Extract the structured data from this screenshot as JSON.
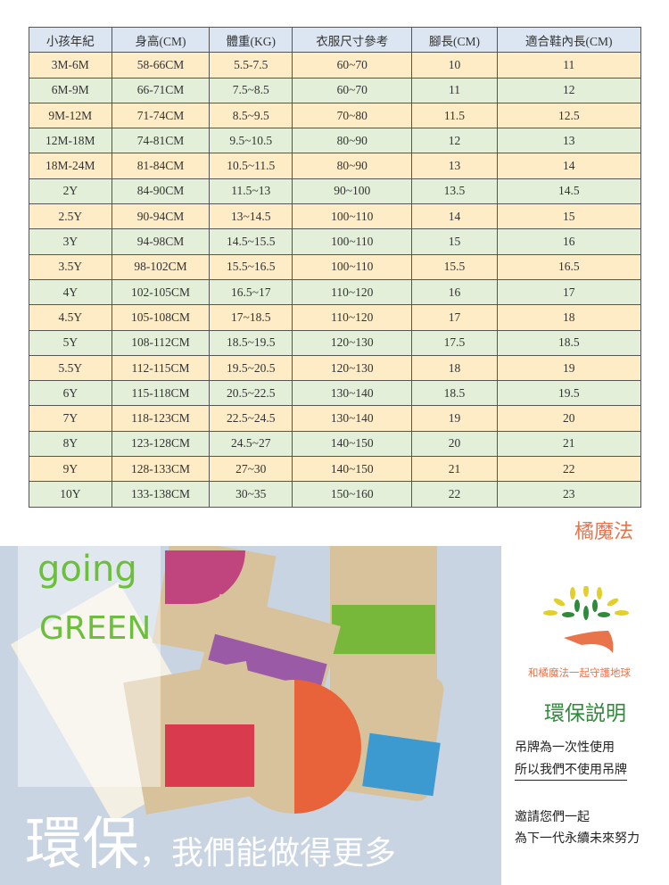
{
  "table": {
    "headers": [
      "小孩年紀",
      "身高(CM)",
      "體重(KG)",
      "衣服尺寸參考",
      "腳長(CM)",
      "適合鞋內長(CM)"
    ],
    "rows": [
      [
        "3M-6M",
        "58-66CM",
        "5.5-7.5",
        "60~70",
        "10",
        "11"
      ],
      [
        "6M-9M",
        "66-71CM",
        "7.5~8.5",
        "60~70",
        "11",
        "12"
      ],
      [
        "9M-12M",
        "71-74CM",
        "8.5~9.5",
        "70~80",
        "11.5",
        "12.5"
      ],
      [
        "12M-18M",
        "74-81CM",
        "9.5~10.5",
        "80~90",
        "12",
        "13"
      ],
      [
        "18M-24M",
        "81-84CM",
        "10.5~11.5",
        "80~90",
        "13",
        "14"
      ],
      [
        "2Y",
        "84-90CM",
        "11.5~13",
        "90~100",
        "13.5",
        "14.5"
      ],
      [
        "2.5Y",
        "90-94CM",
        "13~14.5",
        "100~110",
        "14",
        "15"
      ],
      [
        "3Y",
        "94-98CM",
        "14.5~15.5",
        "100~110",
        "15",
        "16"
      ],
      [
        "3.5Y",
        "98-102CM",
        "15.5~16.5",
        "100~110",
        "15.5",
        "16.5"
      ],
      [
        "4Y",
        "102-105CM",
        "16.5~17",
        "110~120",
        "16",
        "17"
      ],
      [
        "4.5Y",
        "105-108CM",
        "17~18.5",
        "110~120",
        "17",
        "18"
      ],
      [
        "5Y",
        "108-112CM",
        "18.5~19.5",
        "120~130",
        "17.5",
        "18.5"
      ],
      [
        "5.5Y",
        "112-115CM",
        "19.5~20.5",
        "120~130",
        "18",
        "19"
      ],
      [
        "6Y",
        "115-118CM",
        "20.5~22.5",
        "130~140",
        "18.5",
        "19.5"
      ],
      [
        "7Y",
        "118-123CM",
        "22.5~24.5",
        "130~140",
        "19",
        "20"
      ],
      [
        "8Y",
        "123-128CM",
        "24.5~27",
        "140~150",
        "20",
        "21"
      ],
      [
        "9Y",
        "128-133CM",
        "27~30",
        "140~150",
        "21",
        "22"
      ],
      [
        "10Y",
        "133-138CM",
        "30~35",
        "150~160",
        "22",
        "23"
      ]
    ]
  },
  "brand": "橘魔法",
  "banner": {
    "going": "going",
    "green": "GREEN",
    "big": "環保",
    "sub": "，我們能做得更多"
  },
  "panel": {
    "logo_text": "和橘魔法一起守護地球",
    "title": "環保説明",
    "line1": "吊牌為一次性使用",
    "line2": "所以我們不使用吊牌",
    "line3": "邀請您們一起",
    "line4": "為下一代永續未來努力"
  },
  "colors": {
    "header": "#dbe6f2",
    "row_yellow": "#fdecc6",
    "row_green": "#e3efd9",
    "brand": "#e9734a",
    "green": "#6bbf3b",
    "title": "#2e8b3a"
  }
}
